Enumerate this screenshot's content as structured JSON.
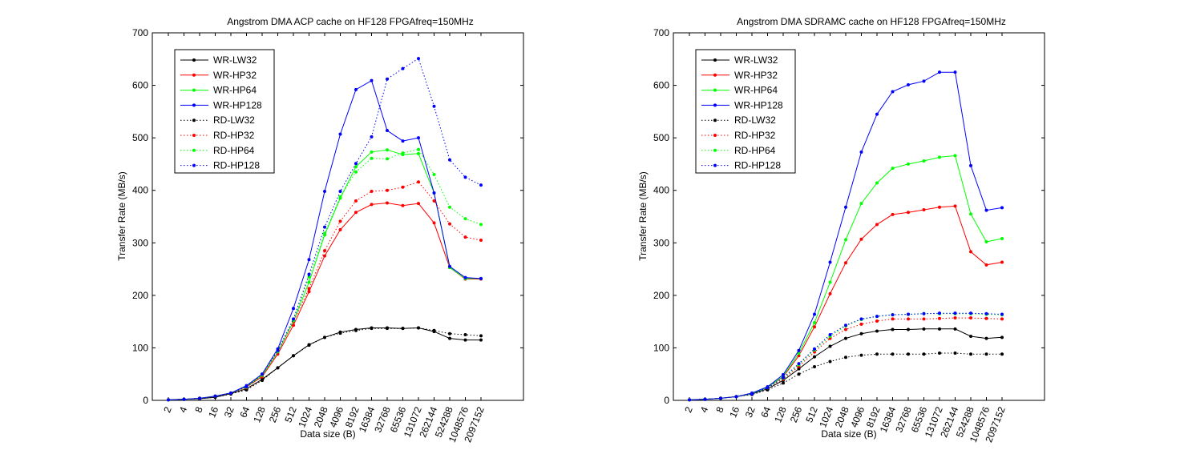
{
  "chart_data": [
    {
      "type": "line",
      "title": "Angstrom DMA ACP cache on HF128 FPGAfreq=150MHz",
      "xlabel": "Data size (B)",
      "ylabel": "Transfer Rate (MB/s)",
      "ylim": [
        0,
        700
      ],
      "yticks": [
        0,
        100,
        200,
        300,
        400,
        500,
        600,
        700
      ],
      "grid": false,
      "legend_position": "top-left",
      "categories": [
        "2",
        "4",
        "8",
        "16",
        "32",
        "64",
        "128",
        "256",
        "512",
        "1024",
        "2048",
        "4096",
        "8192",
        "16384",
        "32768",
        "65536",
        "131072",
        "262144",
        "524288",
        "1048576",
        "2097152"
      ],
      "series": [
        {
          "name": "WR-LW32",
          "color": "#000000",
          "style": "solid",
          "values": [
            1,
            2,
            3,
            6,
            13,
            22,
            40,
            62,
            85,
            106,
            120,
            130,
            135,
            138,
            138,
            137,
            138,
            131,
            118,
            115,
            115
          ]
        },
        {
          "name": "WR-HP32",
          "color": "#ff0000",
          "style": "solid",
          "values": [
            1,
            2,
            4,
            8,
            14,
            26,
            45,
            88,
            143,
            207,
            275,
            325,
            358,
            373,
            376,
            371,
            375,
            338,
            253,
            231,
            231
          ]
        },
        {
          "name": "WR-HP64",
          "color": "#00ff00",
          "style": "solid",
          "values": [
            1,
            2,
            4,
            8,
            14,
            27,
            47,
            92,
            150,
            225,
            315,
            385,
            445,
            473,
            477,
            468,
            470,
            395,
            253,
            232,
            232
          ]
        },
        {
          "name": "WR-HP128",
          "color": "#0000ff",
          "style": "solid",
          "values": [
            1,
            2,
            4,
            8,
            14,
            28,
            50,
            98,
            175,
            268,
            398,
            507,
            592,
            609,
            514,
            494,
            500,
            395,
            255,
            234,
            232
          ]
        },
        {
          "name": "RD-LW32",
          "color": "#000000",
          "style": "dotted",
          "values": [
            1,
            2,
            3,
            6,
            12,
            20,
            38,
            62,
            85,
            105,
            120,
            128,
            133,
            137,
            137,
            137,
            138,
            133,
            127,
            125,
            123
          ]
        },
        {
          "name": "RD-HP32",
          "color": "#ff0000",
          "style": "dotted",
          "values": [
            1,
            2,
            4,
            8,
            14,
            24,
            48,
            92,
            150,
            213,
            285,
            341,
            380,
            398,
            400,
            406,
            416,
            380,
            336,
            311,
            305
          ]
        },
        {
          "name": "RD-HP64",
          "color": "#00ff00",
          "style": "dotted",
          "values": [
            1,
            2,
            4,
            8,
            14,
            25,
            49,
            93,
            152,
            235,
            318,
            388,
            435,
            461,
            460,
            471,
            478,
            430,
            368,
            346,
            335
          ]
        },
        {
          "name": "RD-HP128",
          "color": "#0000ff",
          "style": "dotted",
          "values": [
            1,
            2,
            4,
            8,
            14,
            26,
            50,
            95,
            155,
            240,
            330,
            398,
            451,
            502,
            612,
            632,
            651,
            560,
            458,
            425,
            410
          ]
        }
      ]
    },
    {
      "type": "line",
      "title": "Angstrom DMA SDRAMC cache on HF128 FPGAfreq=150MHz",
      "xlabel": "Data size (B)",
      "ylabel": "Transfer Rate (MB/s)",
      "ylim": [
        0,
        700
      ],
      "yticks": [
        0,
        100,
        200,
        300,
        400,
        500,
        600,
        700
      ],
      "grid": false,
      "legend_position": "top-left",
      "categories": [
        "2",
        "4",
        "8",
        "16",
        "32",
        "64",
        "128",
        "256",
        "512",
        "1024",
        "2048",
        "4096",
        "8192",
        "16384",
        "32768",
        "65536",
        "131072",
        "262144",
        "524288",
        "1048576",
        "2097152"
      ],
      "series": [
        {
          "name": "WR-LW32",
          "color": "#000000",
          "style": "solid",
          "values": [
            1,
            2,
            4,
            7,
            12,
            22,
            38,
            60,
            83,
            103,
            118,
            127,
            132,
            135,
            135,
            136,
            136,
            136,
            122,
            118,
            120
          ]
        },
        {
          "name": "WR-HP32",
          "color": "#ff0000",
          "style": "solid",
          "values": [
            1,
            2,
            4,
            7,
            13,
            25,
            45,
            85,
            140,
            203,
            262,
            307,
            335,
            354,
            358,
            363,
            368,
            370,
            283,
            258,
            263
          ]
        },
        {
          "name": "WR-HP64",
          "color": "#00ff00",
          "style": "solid",
          "values": [
            1,
            2,
            4,
            7,
            13,
            25,
            46,
            90,
            148,
            225,
            306,
            375,
            414,
            442,
            450,
            456,
            463,
            466,
            355,
            302,
            308
          ]
        },
        {
          "name": "WR-HP128",
          "color": "#0000ff",
          "style": "solid",
          "values": [
            1,
            2,
            4,
            7,
            14,
            26,
            49,
            95,
            164,
            263,
            368,
            473,
            545,
            588,
            601,
            608,
            625,
            625,
            447,
            362,
            367
          ]
        },
        {
          "name": "RD-LW32",
          "color": "#000000",
          "style": "dotted",
          "values": [
            1,
            2,
            4,
            7,
            11,
            20,
            33,
            50,
            64,
            74,
            82,
            86,
            88,
            88,
            88,
            88,
            90,
            90,
            88,
            88,
            88
          ]
        },
        {
          "name": "RD-HP32",
          "color": "#ff0000",
          "style": "dotted",
          "values": [
            1,
            2,
            4,
            7,
            12,
            24,
            40,
            65,
            92,
            118,
            135,
            145,
            151,
            155,
            155,
            155,
            156,
            157,
            157,
            156,
            155
          ]
        },
        {
          "name": "RD-HP64",
          "color": "#00ff00",
          "style": "dotted",
          "values": [
            1,
            2,
            4,
            7,
            12,
            24,
            42,
            68,
            96,
            122,
            142,
            154,
            160,
            163,
            164,
            165,
            165,
            165,
            165,
            164,
            163
          ]
        },
        {
          "name": "RD-HP128",
          "color": "#0000ff",
          "style": "dotted",
          "values": [
            1,
            2,
            4,
            7,
            12,
            24,
            43,
            70,
            98,
            125,
            143,
            155,
            160,
            163,
            164,
            165,
            166,
            166,
            166,
            165,
            164
          ]
        }
      ]
    }
  ]
}
